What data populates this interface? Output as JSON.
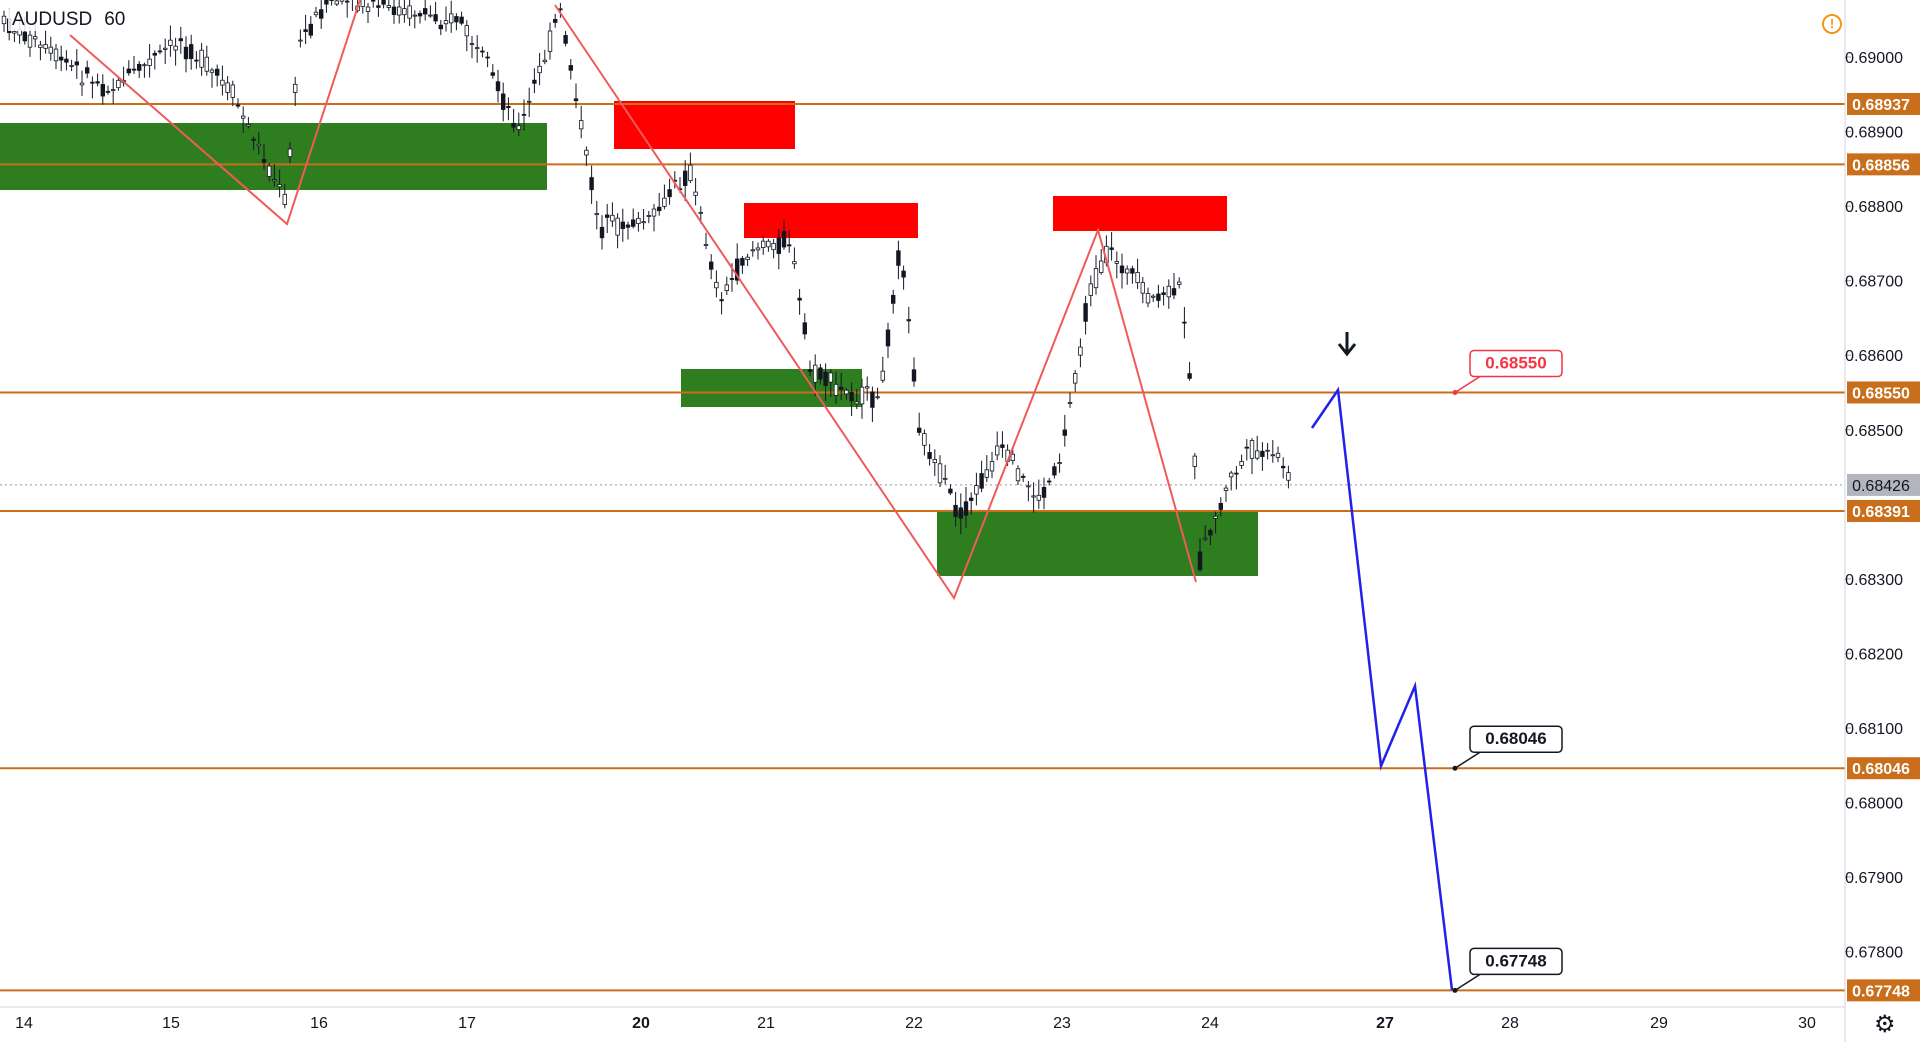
{
  "header": {
    "symbol": "AUDUSD",
    "interval": "60"
  },
  "chart_data": {
    "type": "candlestick",
    "symbol": "AUDUSD",
    "interval": "60",
    "ylim": [
      0.6774,
      0.6905
    ],
    "y_ticks": [
      "0.69000",
      "0.68900",
      "0.68800",
      "0.68700",
      "0.68600",
      "0.68500",
      "0.68300",
      "0.68200",
      "0.68100",
      "0.68000",
      "0.67900",
      "0.67800"
    ],
    "x_ticks": [
      {
        "label": "14",
        "bold": false
      },
      {
        "label": "15",
        "bold": false
      },
      {
        "label": "16",
        "bold": false
      },
      {
        "label": "17",
        "bold": false
      },
      {
        "label": "20",
        "bold": true
      },
      {
        "label": "21",
        "bold": false
      },
      {
        "label": "22",
        "bold": false
      },
      {
        "label": "23",
        "bold": false
      },
      {
        "label": "24",
        "bold": false
      },
      {
        "label": "27",
        "bold": true
      },
      {
        "label": "28",
        "bold": false
      },
      {
        "label": "29",
        "bold": false
      },
      {
        "label": "30",
        "bold": false
      }
    ],
    "levels": [
      {
        "price": 0.68937,
        "label": "0.68937"
      },
      {
        "price": 0.68856,
        "label": "0.68856"
      },
      {
        "price": 0.6855,
        "label": "0.68550"
      },
      {
        "price": 0.68391,
        "label": "0.68391"
      },
      {
        "price": 0.68046,
        "label": "0.68046"
      },
      {
        "price": 0.67748,
        "label": "0.67748"
      }
    ],
    "last_price": {
      "price": 0.68426,
      "label": "0.68426"
    },
    "callouts": [
      {
        "price": 0.6855,
        "label": "0.68550",
        "color": "#f23645"
      },
      {
        "price": 0.68046,
        "label": "0.68046",
        "color": "#131722"
      },
      {
        "price": 0.67748,
        "label": "0.67748",
        "color": "#131722"
      }
    ],
    "colors": {
      "level_line": "#c96e1b",
      "level_label_bg": "#c96e1b",
      "supply_zone": "#ff0000",
      "demand_zone": "#2e7d1f",
      "zigzag": "#f05a5a",
      "projection": "#2121e8",
      "candle": "#131722",
      "last_price_bg": "#b2b5be"
    },
    "candles_description": "hourly AUDUSD candles Jan 14 to Jan 24"
  }
}
